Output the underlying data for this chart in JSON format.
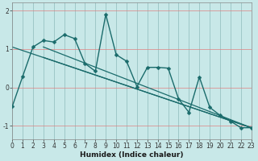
{
  "xlabel": "Humidex (Indice chaleur)",
  "bg_color": "#c8e8e8",
  "line_color": "#1a6b6b",
  "plot_bg": "#c8e8e8",
  "grid_h_color": "#e08080",
  "grid_v_color": "#80b0b0",
  "xlim": [
    0,
    23
  ],
  "ylim": [
    -1.35,
    2.2
  ],
  "yticks": [
    -1,
    0,
    1,
    2
  ],
  "xticks": [
    0,
    1,
    2,
    3,
    4,
    5,
    6,
    7,
    8,
    9,
    10,
    11,
    12,
    13,
    14,
    15,
    16,
    17,
    18,
    19,
    20,
    21,
    22,
    23
  ],
  "series": [
    {
      "x": [
        0,
        1,
        2,
        3,
        4,
        5,
        6,
        7,
        8,
        9,
        10,
        11,
        12,
        13,
        14,
        15,
        16,
        17,
        18,
        19,
        20,
        21,
        22,
        23
      ],
      "y": [
        -0.5,
        0.28,
        1.05,
        1.22,
        1.18,
        1.37,
        1.27,
        0.62,
        0.42,
        1.9,
        0.85,
        0.68,
        0.02,
        0.52,
        0.52,
        0.5,
        -0.3,
        -0.65,
        0.27,
        -0.52,
        -0.73,
        -0.88,
        -1.05,
        -1.05
      ],
      "marker": true,
      "lw": 1.0
    },
    {
      "x": [
        0,
        23
      ],
      "y": [
        1.05,
        -1.05
      ],
      "marker": false,
      "lw": 0.9
    },
    {
      "x": [
        3,
        23
      ],
      "y": [
        1.05,
        -1.05
      ],
      "marker": false,
      "lw": 0.9
    },
    {
      "x": [
        3,
        23
      ],
      "y": [
        0.78,
        -1.05
      ],
      "marker": false,
      "lw": 0.9
    }
  ],
  "marker_size": 2.5,
  "tick_fontsize": 5.5,
  "xlabel_fontsize": 6.5
}
